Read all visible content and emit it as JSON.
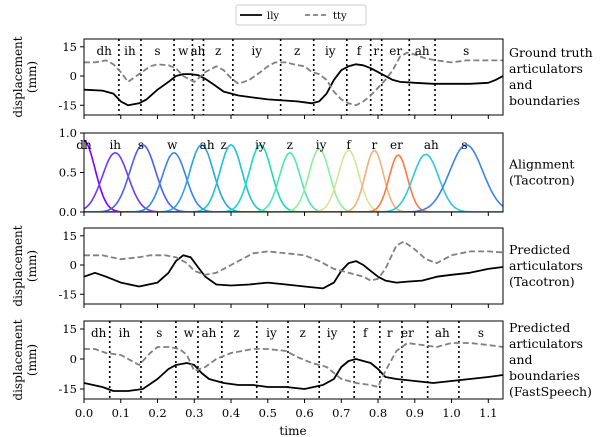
{
  "legend": [
    {
      "name": "lly",
      "color": "#000000",
      "dash": "solid"
    },
    {
      "name": "tty",
      "color": "#808080",
      "dash": "dashed"
    }
  ],
  "xlabel": "time",
  "x_ticks": [
    "0.0",
    "0.1",
    "0.2",
    "0.3",
    "0.4",
    "0.5",
    "0.6",
    "0.7",
    "0.8",
    "0.9",
    "1.0",
    "1.1"
  ],
  "xlim": [
    0.0,
    1.14
  ],
  "panels": [
    {
      "id": "p1",
      "side_label": [
        "Ground truth",
        "articulators",
        "and",
        "boundaries"
      ],
      "ylabel": [
        "displacement",
        "(mm)"
      ],
      "y_ticks": [
        "15",
        "0",
        "-15"
      ]
    },
    {
      "id": "p2",
      "side_label": [
        "Alignment",
        "(Tacotron)"
      ],
      "ylabel": [],
      "y_ticks": [
        "1.0",
        "0.5",
        "0.0"
      ]
    },
    {
      "id": "p3",
      "side_label": [
        "Predicted",
        "articulators",
        "(Tacotron)"
      ],
      "ylabel": [
        "displacement",
        "(mm)"
      ],
      "y_ticks": [
        "15",
        "0",
        "-15"
      ]
    },
    {
      "id": "p4",
      "side_label": [
        "Predicted",
        "articulators",
        "and",
        "boundaries",
        "(FastSpeech)"
      ],
      "ylabel": [
        "displacement",
        "(mm)"
      ],
      "y_ticks": [
        "15",
        "0",
        "-15"
      ]
    }
  ],
  "chart_data": [
    {
      "type": "line",
      "panel": "p1",
      "ylim": [
        -20,
        19
      ],
      "series": [
        {
          "name": "lly",
          "x": [
            0.0,
            0.05,
            0.08,
            0.1,
            0.12,
            0.15,
            0.17,
            0.2,
            0.23,
            0.25,
            0.27,
            0.29,
            0.31,
            0.33,
            0.35,
            0.38,
            0.42,
            0.46,
            0.5,
            0.54,
            0.58,
            0.6,
            0.62,
            0.64,
            0.66,
            0.68,
            0.7,
            0.72,
            0.74,
            0.76,
            0.78,
            0.8,
            0.82,
            0.84,
            0.86,
            0.9,
            0.95,
            1.0,
            1.05,
            1.1,
            1.12,
            1.14
          ],
          "y": [
            -7,
            -7.5,
            -9,
            -13,
            -15,
            -14,
            -12,
            -7,
            -3,
            0,
            1,
            1,
            0.5,
            -1.5,
            -4,
            -8,
            -10,
            -11,
            -12,
            -12.5,
            -13,
            -13.5,
            -14,
            -13,
            -9,
            -2,
            3,
            5,
            6,
            5.5,
            4,
            2,
            0,
            -2,
            -3,
            -3.5,
            -4,
            -4,
            -4,
            -3.5,
            -2,
            0
          ]
        },
        {
          "name": "tty",
          "x": [
            0.0,
            0.03,
            0.06,
            0.08,
            0.1,
            0.12,
            0.15,
            0.18,
            0.2,
            0.23,
            0.25,
            0.27,
            0.3,
            0.33,
            0.36,
            0.38,
            0.4,
            0.42,
            0.45,
            0.48,
            0.5,
            0.52,
            0.55,
            0.57,
            0.6,
            0.62,
            0.64,
            0.66,
            0.68,
            0.7,
            0.72,
            0.74,
            0.76,
            0.78,
            0.8,
            0.82,
            0.84,
            0.86,
            0.88,
            0.9,
            0.93,
            0.96,
            1.0,
            1.04,
            1.08,
            1.14
          ],
          "y": [
            7,
            7,
            8,
            6,
            2,
            -3,
            1,
            5,
            6,
            5.5,
            4,
            0,
            -3,
            2,
            5,
            3,
            -1,
            -4,
            -2,
            2,
            5,
            7,
            7,
            6,
            5,
            2,
            1,
            -2,
            -8,
            -12,
            -14,
            -15,
            -13,
            -10,
            -6,
            -2,
            3,
            10,
            12,
            11,
            9,
            8,
            7,
            8,
            8,
            8
          ]
        }
      ],
      "boundaries": [
        0.095,
        0.155,
        0.245,
        0.295,
        0.325,
        0.405,
        0.535,
        0.625,
        0.715,
        0.78,
        0.81,
        0.885,
        0.955
      ],
      "phones": [
        {
          "label": "dh",
          "x": 0.055
        },
        {
          "label": "ih",
          "x": 0.125
        },
        {
          "label": "s",
          "x": 0.2
        },
        {
          "label": "w",
          "x": 0.27
        },
        {
          "label": "ah",
          "x": 0.31
        },
        {
          "label": "z",
          "x": 0.365
        },
        {
          "label": "iy",
          "x": 0.47
        },
        {
          "label": "z",
          "x": 0.58
        },
        {
          "label": "iy",
          "x": 0.67
        },
        {
          "label": "f",
          "x": 0.748
        },
        {
          "label": "r",
          "x": 0.795
        },
        {
          "label": "er",
          "x": 0.848
        },
        {
          "label": "ah",
          "x": 0.92
        },
        {
          "label": "s",
          "x": 1.04
        }
      ]
    },
    {
      "type": "line",
      "panel": "p2",
      "ylim": [
        0,
        1
      ],
      "peaks": [
        {
          "label": "dh",
          "center": 0.0,
          "width": 0.03,
          "height": 0.9,
          "color": "#7f00ff"
        },
        {
          "label": "ih",
          "center": 0.085,
          "width": 0.035,
          "height": 0.75,
          "color": "#6a3cf8"
        },
        {
          "label": "s",
          "center": 0.16,
          "width": 0.035,
          "height": 0.85,
          "color": "#4d5ef0"
        },
        {
          "label": "w",
          "center": 0.245,
          "width": 0.032,
          "height": 0.75,
          "color": "#3b82e8"
        },
        {
          "label": "ah",
          "center": 0.32,
          "width": 0.032,
          "height": 0.85,
          "color": "#2da3e0"
        },
        {
          "label": "z",
          "center": 0.4,
          "width": 0.03,
          "height": 0.85,
          "color": "#1fc2d4"
        },
        {
          "label": "iy",
          "center": 0.48,
          "width": 0.03,
          "height": 0.85,
          "color": "#1cd9c2"
        },
        {
          "label": "z",
          "center": 0.56,
          "width": 0.028,
          "height": 0.75,
          "color": "#4ee8ae"
        },
        {
          "label": "iy",
          "center": 0.64,
          "width": 0.028,
          "height": 0.8,
          "color": "#8ef099"
        },
        {
          "label": "f",
          "center": 0.72,
          "width": 0.028,
          "height": 0.78,
          "color": "#d4e59a"
        },
        {
          "label": "r",
          "center": 0.79,
          "width": 0.025,
          "height": 0.78,
          "color": "#f5b07a"
        },
        {
          "label": "er",
          "center": 0.855,
          "width": 0.025,
          "height": 0.72,
          "color": "#ff7845"
        },
        {
          "label": "ah",
          "center": 0.93,
          "width": 0.035,
          "height": 0.73,
          "color": "#2fc8e0"
        },
        {
          "label": "s",
          "center": 1.04,
          "width": 0.045,
          "height": 0.85,
          "color": "#3b82e8"
        }
      ],
      "phones": [
        {
          "label": "dh",
          "x": 0.0
        },
        {
          "label": "ih",
          "x": 0.085
        },
        {
          "label": "s",
          "x": 0.155
        },
        {
          "label": "w",
          "x": 0.24
        },
        {
          "label": "ah",
          "x": 0.335
        },
        {
          "label": "z",
          "x": 0.38
        },
        {
          "label": "iy",
          "x": 0.48
        },
        {
          "label": "z",
          "x": 0.56
        },
        {
          "label": "iy",
          "x": 0.645
        },
        {
          "label": "f",
          "x": 0.72
        },
        {
          "label": "r",
          "x": 0.79
        },
        {
          "label": "er",
          "x": 0.85
        },
        {
          "label": "ah",
          "x": 0.945
        },
        {
          "label": "s",
          "x": 1.035
        }
      ]
    },
    {
      "type": "line",
      "panel": "p3",
      "ylim": [
        -20,
        19
      ],
      "series": [
        {
          "name": "lly",
          "x": [
            0.0,
            0.03,
            0.06,
            0.1,
            0.15,
            0.2,
            0.23,
            0.25,
            0.27,
            0.29,
            0.31,
            0.33,
            0.36,
            0.4,
            0.45,
            0.5,
            0.55,
            0.6,
            0.65,
            0.68,
            0.7,
            0.72,
            0.74,
            0.76,
            0.78,
            0.8,
            0.82,
            0.85,
            0.88,
            0.92,
            0.96,
            1.0,
            1.05,
            1.1,
            1.14
          ],
          "y": [
            -6,
            -4,
            -6,
            -9,
            -11,
            -9,
            -4,
            2,
            5,
            4,
            -1,
            -6,
            -10,
            -10.5,
            -10,
            -9,
            -10,
            -11,
            -12,
            -9,
            -3,
            1,
            2,
            0,
            -3,
            -6,
            -8,
            -9,
            -8.5,
            -8,
            -6,
            -5,
            -4,
            -2,
            -1
          ]
        },
        {
          "name": "tty",
          "x": [
            0.0,
            0.05,
            0.1,
            0.15,
            0.18,
            0.22,
            0.25,
            0.28,
            0.3,
            0.33,
            0.36,
            0.4,
            0.43,
            0.46,
            0.5,
            0.55,
            0.6,
            0.64,
            0.68,
            0.72,
            0.76,
            0.78,
            0.8,
            0.82,
            0.85,
            0.87,
            0.9,
            0.93,
            0.96,
            1.0,
            1.05,
            1.1,
            1.14
          ],
          "y": [
            5,
            5,
            3,
            4,
            5,
            5,
            4,
            1,
            -3,
            -5,
            -4,
            0,
            3,
            6,
            7,
            6,
            5,
            2,
            -2,
            -4,
            -6,
            -8,
            -7,
            -2,
            10,
            12,
            8,
            3,
            1,
            5,
            7,
            7,
            6.5
          ]
        }
      ]
    },
    {
      "type": "line",
      "panel": "p4",
      "ylim": [
        -20,
        19
      ],
      "series": [
        {
          "name": "lly",
          "x": [
            0.0,
            0.05,
            0.08,
            0.12,
            0.16,
            0.2,
            0.23,
            0.25,
            0.28,
            0.3,
            0.32,
            0.34,
            0.38,
            0.42,
            0.46,
            0.5,
            0.55,
            0.6,
            0.65,
            0.68,
            0.7,
            0.72,
            0.74,
            0.76,
            0.78,
            0.8,
            0.82,
            0.85,
            0.9,
            0.95,
            1.0,
            1.05,
            1.1,
            1.14
          ],
          "y": [
            -12,
            -14,
            -16,
            -16,
            -15,
            -10,
            -5,
            -3,
            -2,
            -3,
            -7,
            -10,
            -12,
            -13,
            -13,
            -14,
            -14,
            -15,
            -13,
            -10,
            -4,
            -1,
            0,
            -1,
            -2,
            -5,
            -9,
            -10,
            -11,
            -12,
            -11,
            -10,
            -9,
            -8
          ]
        },
        {
          "name": "tty",
          "x": [
            0.0,
            0.03,
            0.06,
            0.1,
            0.15,
            0.18,
            0.2,
            0.23,
            0.26,
            0.28,
            0.3,
            0.33,
            0.36,
            0.4,
            0.43,
            0.46,
            0.5,
            0.55,
            0.58,
            0.62,
            0.66,
            0.7,
            0.74,
            0.78,
            0.8,
            0.82,
            0.85,
            0.88,
            0.92,
            0.96,
            1.0,
            1.05,
            1.1,
            1.14
          ],
          "y": [
            5,
            5,
            3,
            2,
            -3,
            3,
            6,
            6,
            5,
            2,
            -6,
            -4,
            0,
            3,
            4,
            5,
            5,
            4,
            1,
            -2,
            -4,
            -10,
            -12,
            -13,
            -14,
            -6,
            4,
            8,
            7,
            6,
            8,
            8,
            7,
            6
          ]
        }
      ],
      "boundaries": [
        0.07,
        0.155,
        0.25,
        0.31,
        0.375,
        0.47,
        0.555,
        0.64,
        0.735,
        0.805,
        0.865,
        0.935,
        1.02
      ],
      "phones": [
        {
          "label": "dh",
          "x": 0.04
        },
        {
          "label": "ih",
          "x": 0.11
        },
        {
          "label": "s",
          "x": 0.205
        },
        {
          "label": "w",
          "x": 0.285
        },
        {
          "label": "ah",
          "x": 0.34
        },
        {
          "label": "z",
          "x": 0.415
        },
        {
          "label": "iy",
          "x": 0.51
        },
        {
          "label": "z",
          "x": 0.595
        },
        {
          "label": "iy",
          "x": 0.675
        },
        {
          "label": "f",
          "x": 0.765
        },
        {
          "label": "r",
          "x": 0.832
        },
        {
          "label": "er",
          "x": 0.88
        },
        {
          "label": "ah",
          "x": 0.975
        },
        {
          "label": "s",
          "x": 1.08
        }
      ]
    }
  ]
}
